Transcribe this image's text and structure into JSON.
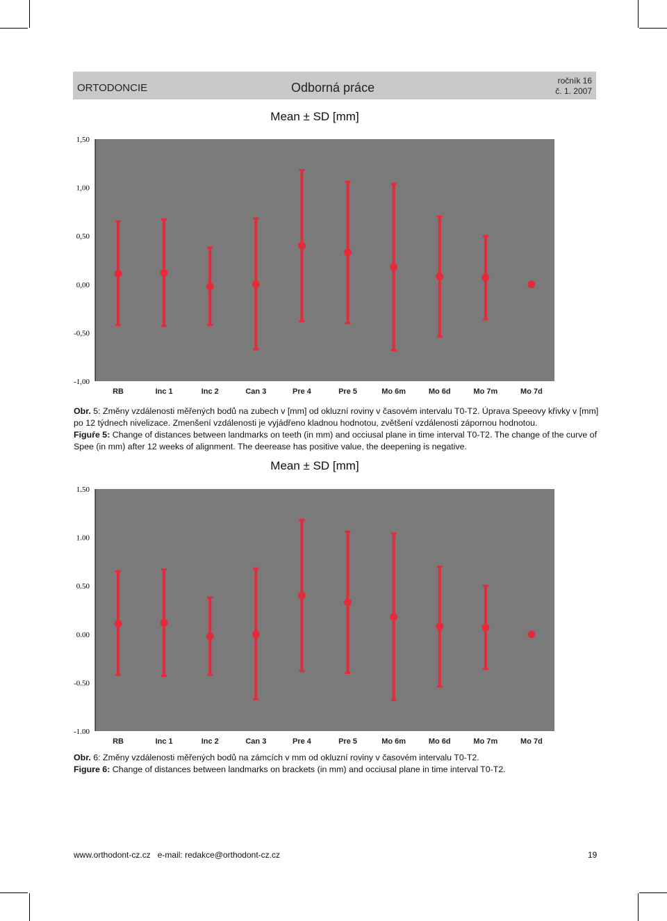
{
  "header": {
    "section": "ORTODONCIE",
    "category": "Odborná práce",
    "volume": "ročník 16",
    "issue": "č. 1. 2007"
  },
  "colors": {
    "plot_background": "#7a7a7a",
    "marker": "#e52b3a",
    "header_band": "#c9c9c9"
  },
  "chart_data": [
    {
      "type": "scatter",
      "title": "Mean ± SD [mm]",
      "categories": [
        "RB",
        "Inc 1",
        "Inc 2",
        "Can 3",
        "Pre 4",
        "Pre 5",
        "Mo 6m",
        "Mo 6d",
        "Mo 7m",
        "Mo 7d"
      ],
      "yticks": [
        "1,50",
        "1,00",
        "0,50",
        "0,00",
        "-0,50",
        "-1,00"
      ],
      "ylim": [
        -1.0,
        1.5
      ],
      "series": [
        {
          "mean": [
            0.11,
            0.12,
            -0.02,
            0.0,
            0.4,
            0.33,
            0.18,
            0.08,
            0.07,
            0.0
          ],
          "upper": [
            0.65,
            0.67,
            0.38,
            0.68,
            1.18,
            1.06,
            1.04,
            0.7,
            0.5,
            0.0
          ],
          "lower": [
            -0.42,
            -0.43,
            -0.42,
            -0.67,
            -0.38,
            -0.4,
            -0.68,
            -0.54,
            -0.36,
            0.0
          ]
        }
      ]
    },
    {
      "type": "scatter",
      "title": "Mean ± SD [mm]",
      "categories": [
        "RB",
        "Inc 1",
        "Inc 2",
        "Can 3",
        "Pre 4",
        "Pre 5",
        "Mo 6m",
        "Mo 6d",
        "Mo 7m",
        "Mo 7d"
      ],
      "yticks": [
        "1.50",
        "1.00",
        "0.50",
        "0.00",
        "-0.50",
        "-1.00"
      ],
      "ylim": [
        -1.0,
        1.5
      ],
      "series": [
        {
          "mean": [
            0.11,
            0.12,
            -0.02,
            0.0,
            0.4,
            0.33,
            0.18,
            0.08,
            0.07,
            0.0
          ],
          "upper": [
            0.65,
            0.67,
            0.38,
            0.68,
            1.18,
            1.06,
            1.04,
            0.7,
            0.5,
            0.0
          ],
          "lower": [
            -0.42,
            -0.43,
            -0.42,
            -0.67,
            -0.38,
            -0.4,
            -0.68,
            -0.54,
            -0.36,
            0.0
          ]
        }
      ]
    }
  ],
  "caption1": {
    "cz_label": "Obr.",
    "cz_text": " 5: Změny vzdálenosti měřených bodů na zubech v [mm] od okluzní roviny v časovém intervalu T0-T2. Úprava Speeovy křivky v [mm] po 12 týdnech nivelizace. Zmenšení vzdálenosti je vyjádřeno kladnou hodnotou, zvětšení vzdálenosti zápornou hodnotou.",
    "en_label": "Figuŕe 5:",
    "en_text": " Change of distances between landmarks on teeth (in mm) and occiusal plane in time interval T0-T2. The change of the curve of Spee (in mm) after 12 weeks of alignment. The deerease  has positive value, the deepening is negative."
  },
  "caption2": {
    "cz_label": "Obr.",
    "cz_text": " 6: Změny vzdálenosti měřených bodů na zámcích v mm od okluzní roviny v časovém intervalu T0-T2.",
    "en_label": "Figure 6:",
    "en_text": " Change of distances between landmarks on brackets (in mm) and occiusal plane in time interval T0-T2."
  },
  "footer": {
    "site": "www.orthodont-cz.cz",
    "email": "e-mail:  redakce@orthodont-cz.cz",
    "page": "19"
  }
}
